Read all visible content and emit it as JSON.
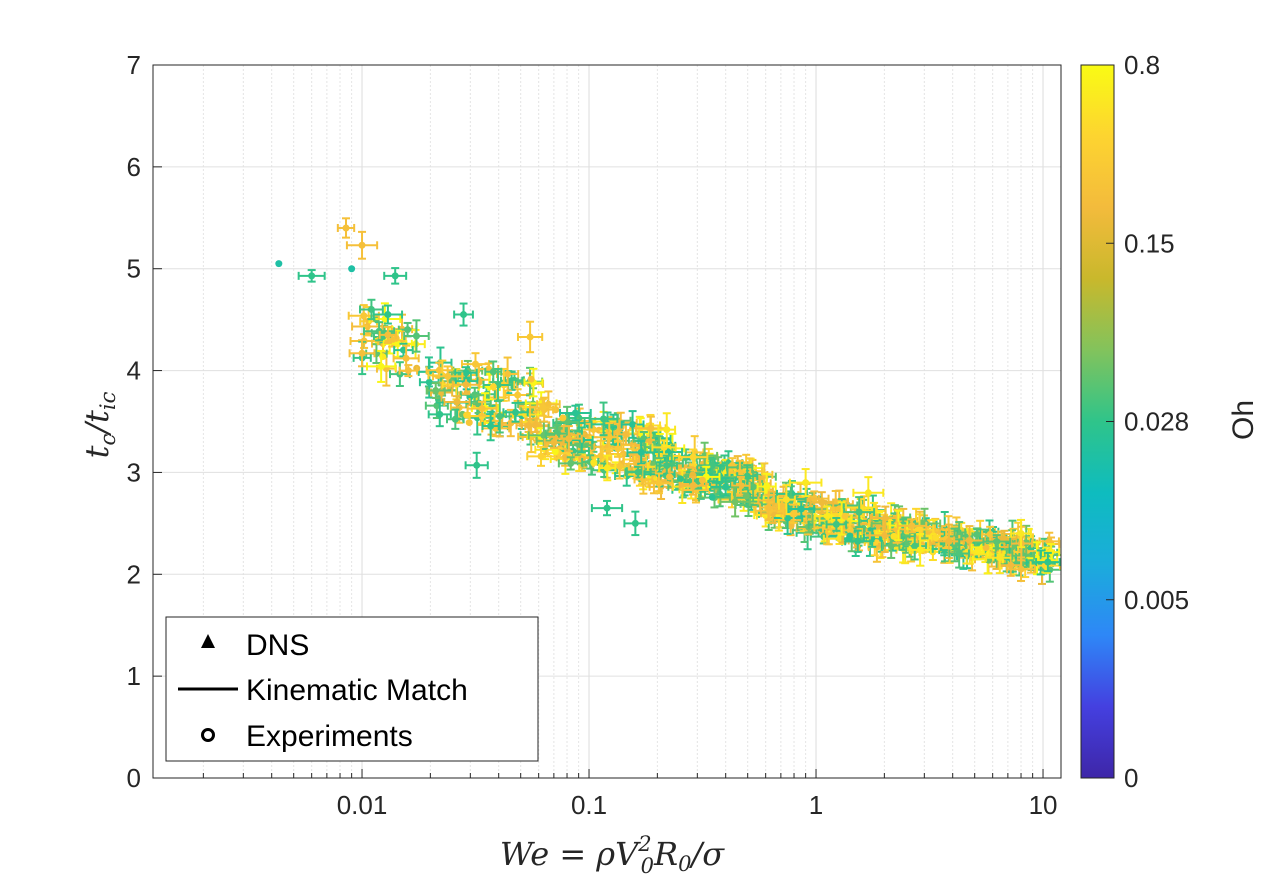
{
  "chart_data": {
    "type": "scatter",
    "xlabel": "We = ρV₀²R₀/σ",
    "xlabel_parts": {
      "main": "We = ρV",
      "sub0": "0",
      "sup2": "2",
      "mid": "R",
      "sub1": "0",
      "tail": "/σ"
    },
    "ylabel": "t_c/t_ic",
    "ylabel_parts": {
      "t1": "t",
      "c": "c",
      "slash": "/t",
      "ic": "ic"
    },
    "x_scale": "log",
    "xlim": [
      0.0012,
      12
    ],
    "ylim": [
      0,
      7
    ],
    "x_ticks": [
      {
        "value": 0.01,
        "label": "0.01"
      },
      {
        "value": 0.1,
        "label": "0.1"
      },
      {
        "value": 1,
        "label": "1"
      },
      {
        "value": 10,
        "label": "10"
      }
    ],
    "y_ticks": [
      "0",
      "1",
      "2",
      "3",
      "4",
      "5",
      "6",
      "7"
    ],
    "grid": true,
    "colorbar": {
      "title": "Oh",
      "labels": [
        "0",
        "0.005",
        "0.028",
        "0.15",
        "0.8"
      ],
      "colors": [
        "#3e26a8",
        "#4440e0",
        "#2e87f7",
        "#1bacdb",
        "#0ebcbf",
        "#2fc48a",
        "#82c35c",
        "#c9b82c",
        "#f3bb3c",
        "#fdd430",
        "#f9fb14"
      ]
    },
    "legend": {
      "placement": "bottom-left",
      "entries": [
        {
          "label": "DNS",
          "marker": "triangle"
        },
        {
          "label": "Kinematic Match",
          "marker": "line"
        },
        {
          "label": "Experiments",
          "marker": "circle"
        }
      ]
    },
    "highlight_points": [
      {
        "x": 0.0043,
        "y": 5.05,
        "oh": 0.45
      },
      {
        "x": 0.006,
        "y": 4.93,
        "oh": 0.5,
        "err": true
      },
      {
        "x": 0.0085,
        "y": 5.4,
        "oh": 0.82,
        "err": true
      },
      {
        "x": 0.009,
        "y": 5.0,
        "oh": 0.45
      },
      {
        "x": 0.01,
        "y": 5.23,
        "oh": 0.82,
        "err": true
      },
      {
        "x": 0.014,
        "y": 4.93,
        "oh": 0.5,
        "err": true
      },
      {
        "x": 0.011,
        "y": 4.6,
        "oh": 0.52,
        "err": true
      },
      {
        "x": 0.013,
        "y": 4.55,
        "oh": 0.5,
        "err": true
      },
      {
        "x": 0.01,
        "y": 4.17,
        "oh": 0.82,
        "err": true
      },
      {
        "x": 0.013,
        "y": 4.35,
        "oh": 0.82,
        "err": true
      },
      {
        "x": 0.016,
        "y": 4.0,
        "oh": 0.82,
        "err": true
      },
      {
        "x": 0.028,
        "y": 4.55,
        "oh": 0.5,
        "err": true
      },
      {
        "x": 0.055,
        "y": 4.33,
        "oh": 0.85,
        "err": true
      },
      {
        "x": 0.022,
        "y": 3.57,
        "oh": 0.5,
        "err": true
      },
      {
        "x": 0.032,
        "y": 3.07,
        "oh": 0.5,
        "err": true
      },
      {
        "x": 0.22,
        "y": 3.42,
        "oh": 0.95,
        "err": true
      },
      {
        "x": 0.9,
        "y": 2.9,
        "oh": 0.95,
        "err": true
      },
      {
        "x": 1.7,
        "y": 2.8,
        "oh": 0.95,
        "err": true
      },
      {
        "x": 0.12,
        "y": 2.65,
        "oh": 0.5,
        "err": true
      },
      {
        "x": 0.16,
        "y": 2.5,
        "oh": 0.5,
        "err": true
      },
      {
        "x": 10.5,
        "y": 2.12,
        "oh": 0.5,
        "err": true
      },
      {
        "x": 8.0,
        "y": 2.4,
        "oh": 0.95,
        "err": true
      },
      {
        "x": 8.0,
        "y": 2.05,
        "oh": 0.82,
        "err": true
      }
    ],
    "clusters": [
      {
        "x_from": 0.01,
        "x_to": 0.02,
        "center_y": 4.2,
        "spread": 0.55,
        "count": 30
      },
      {
        "x_from": 0.02,
        "x_to": 0.06,
        "center_y": 3.75,
        "spread": 0.6,
        "count": 80
      },
      {
        "x_from": 0.06,
        "x_to": 0.2,
        "center_y": 3.3,
        "spread": 0.55,
        "count": 130
      },
      {
        "x_from": 0.2,
        "x_to": 0.6,
        "center_y": 2.95,
        "spread": 0.42,
        "count": 130
      },
      {
        "x_from": 0.6,
        "x_to": 2.0,
        "center_y": 2.55,
        "spread": 0.38,
        "count": 130
      },
      {
        "x_from": 2.0,
        "x_to": 11.0,
        "center_y": 2.3,
        "spread": 0.3,
        "count": 170
      }
    ]
  }
}
